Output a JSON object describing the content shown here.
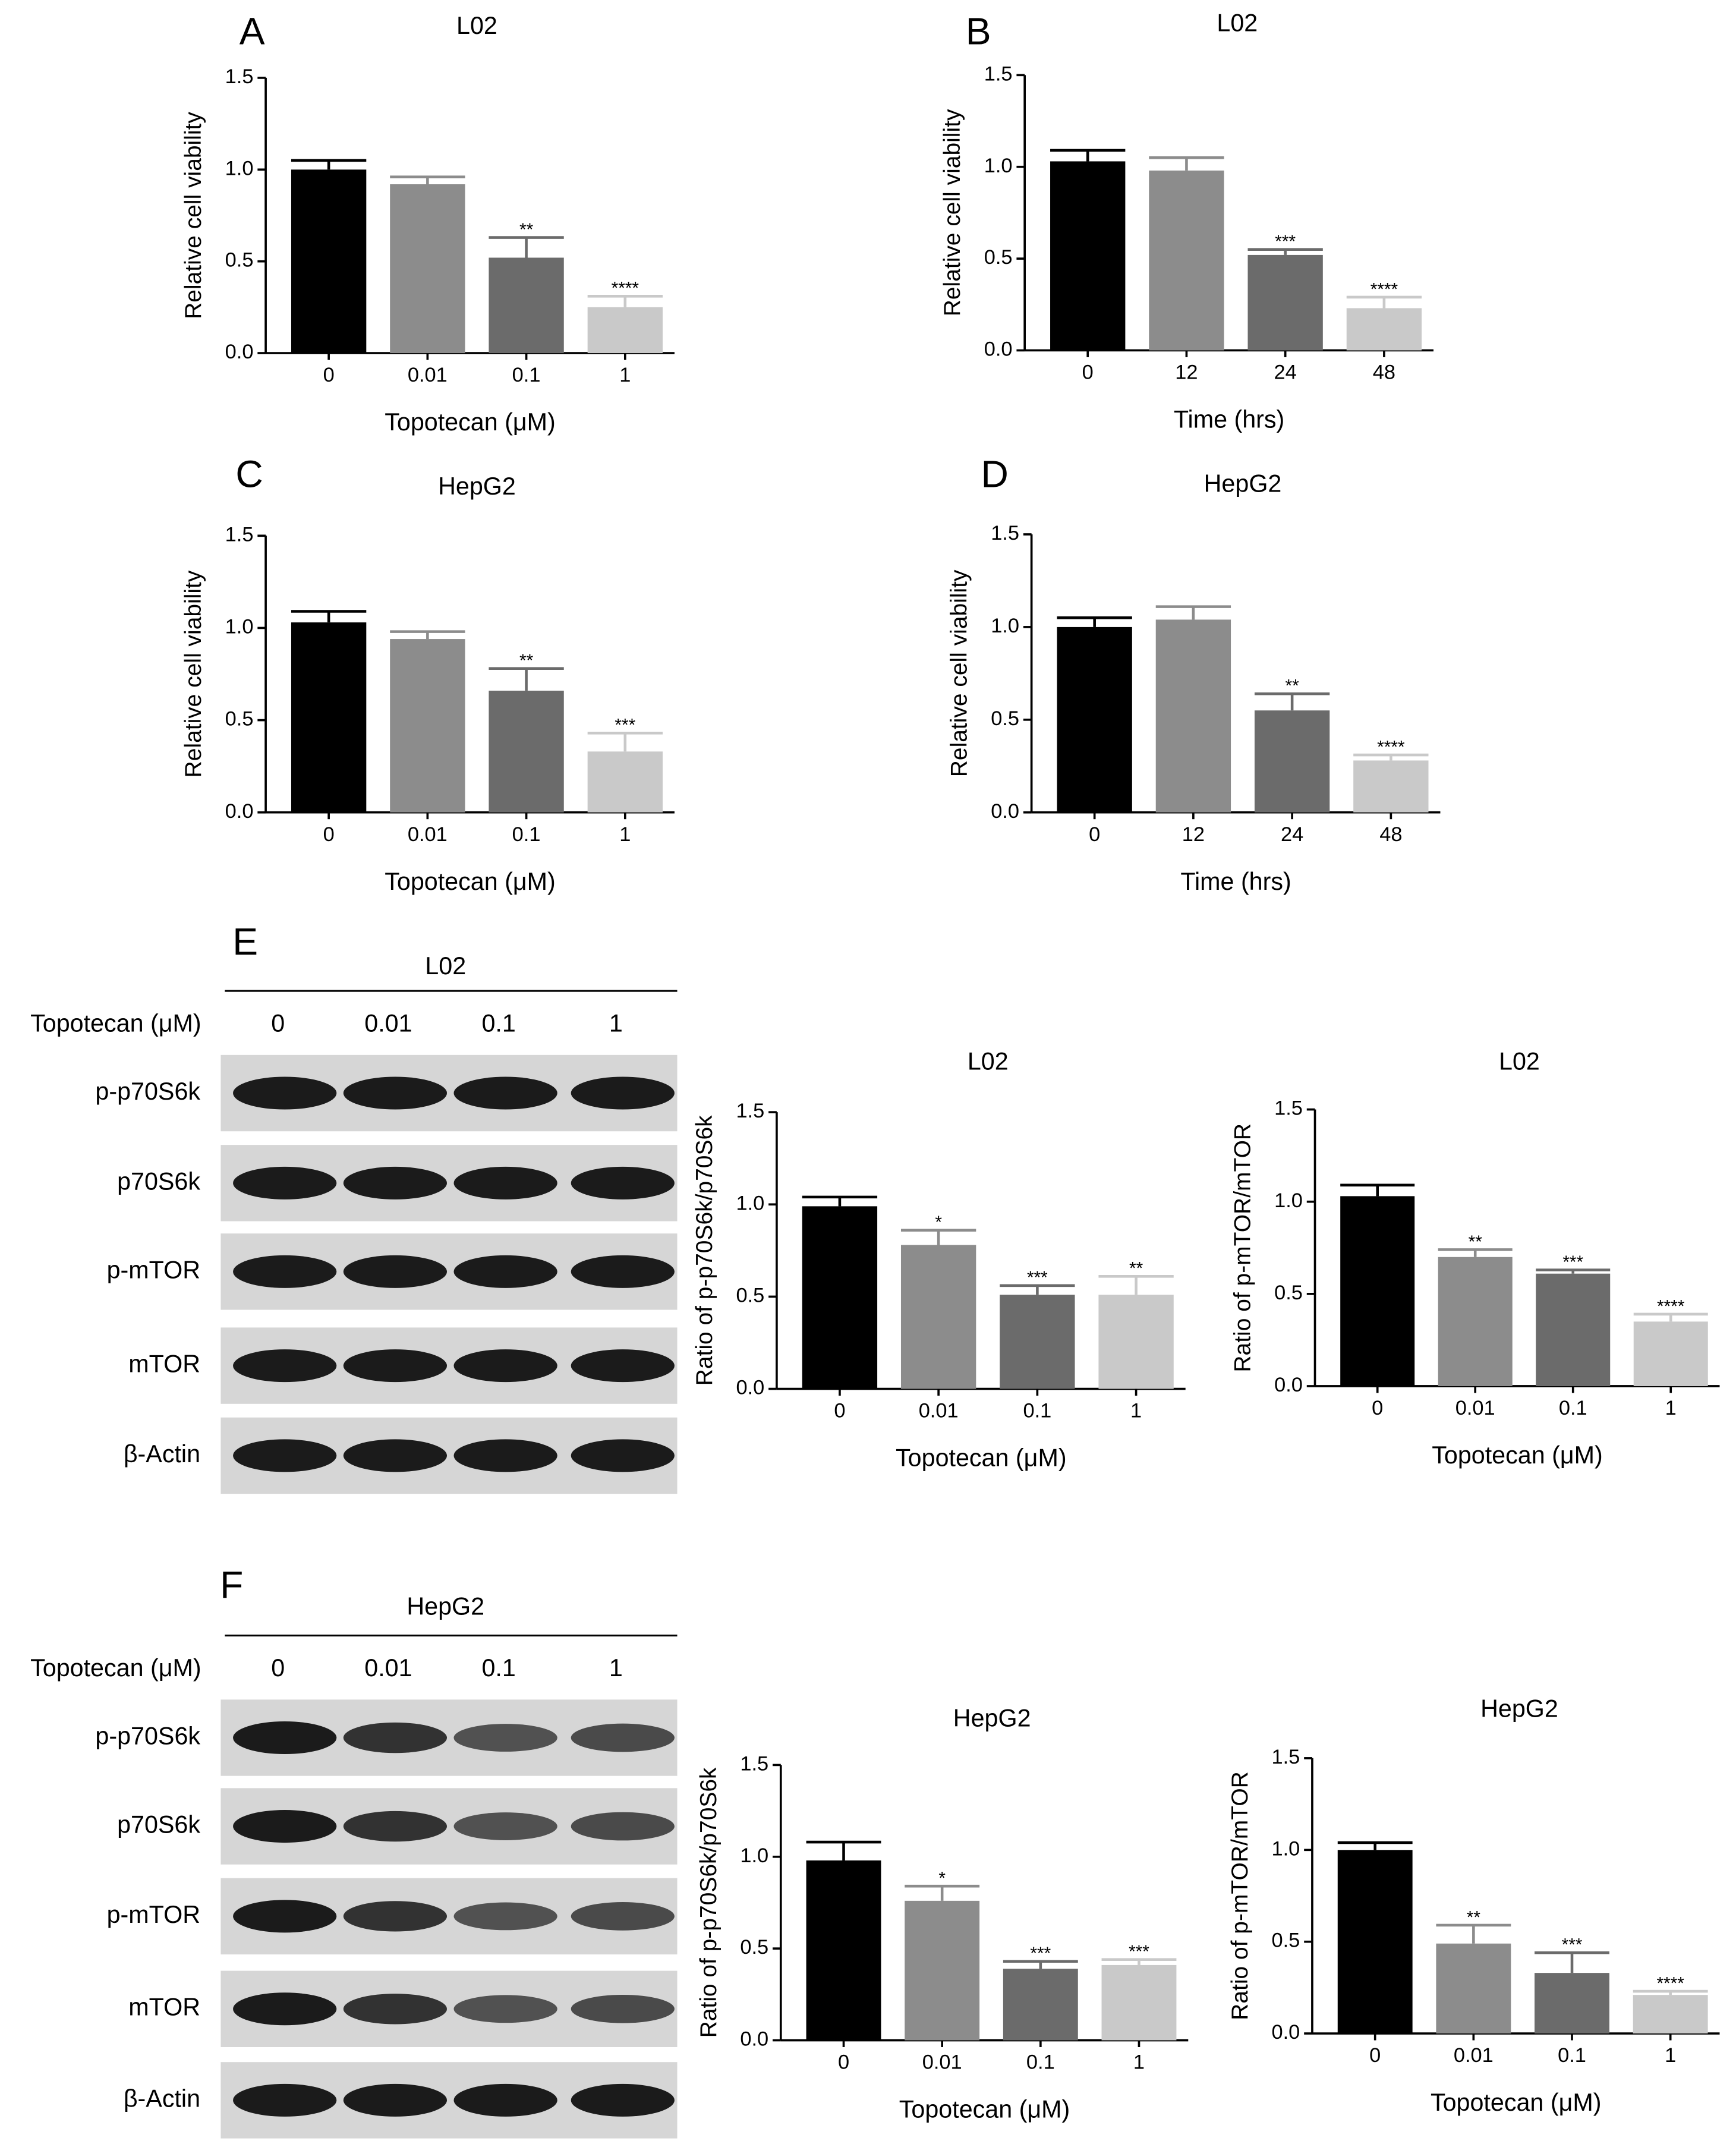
{
  "chart_data": [
    {
      "type": "bar",
      "panel": "A",
      "title": "L02",
      "x_label": "Topotecan (μM)",
      "y_label": "Relative cell viability",
      "categories": [
        "0",
        "0.01",
        "0.1",
        "1"
      ],
      "values": [
        1.0,
        0.92,
        0.52,
        0.25
      ],
      "errors": [
        0.05,
        0.04,
        0.11,
        0.06
      ],
      "annotations": [
        null,
        null,
        "**",
        "****"
      ],
      "colors": [
        "#000000",
        "#8c8c8c",
        "#6b6b6b",
        "#c9c9c9"
      ],
      "ylim": [
        0,
        1.5
      ],
      "yticks": [
        {
          "value": 0,
          "label": "0.0"
        },
        {
          "value": 0.5,
          "label": "0.5"
        },
        {
          "value": 1,
          "label": "1.0"
        },
        {
          "value": 1.5,
          "label": "1.5"
        }
      ]
    },
    {
      "type": "bar",
      "panel": "B",
      "title": "L02",
      "x_label": "Time (hrs)",
      "y_label": "Relative cell viability",
      "categories": [
        "0",
        "12",
        "24",
        "48"
      ],
      "values": [
        1.03,
        0.98,
        0.52,
        0.23
      ],
      "errors": [
        0.06,
        0.07,
        0.03,
        0.06
      ],
      "annotations": [
        null,
        null,
        "***",
        "****"
      ],
      "colors": [
        "#000000",
        "#8c8c8c",
        "#6b6b6b",
        "#c9c9c9"
      ],
      "ylim": [
        0,
        1.5
      ],
      "yticks": [
        {
          "value": 0,
          "label": "0.0"
        },
        {
          "value": 0.5,
          "label": "0.5"
        },
        {
          "value": 1,
          "label": "1.0"
        },
        {
          "value": 1.5,
          "label": "1.5"
        }
      ]
    },
    {
      "type": "bar",
      "panel": "C",
      "title": "HepG2",
      "x_label": "Topotecan (μM)",
      "y_label": "Relative cell viability",
      "categories": [
        "0",
        "0.01",
        "0.1",
        "1"
      ],
      "values": [
        1.03,
        0.94,
        0.66,
        0.33
      ],
      "errors": [
        0.06,
        0.04,
        0.12,
        0.1
      ],
      "annotations": [
        null,
        null,
        "**",
        "***"
      ],
      "colors": [
        "#000000",
        "#8c8c8c",
        "#6b6b6b",
        "#c9c9c9"
      ],
      "ylim": [
        0,
        1.5
      ],
      "yticks": [
        {
          "value": 0,
          "label": "0.0"
        },
        {
          "value": 0.5,
          "label": "0.5"
        },
        {
          "value": 1,
          "label": "1.0"
        },
        {
          "value": 1.5,
          "label": "1.5"
        }
      ]
    },
    {
      "type": "bar",
      "panel": "D",
      "title": "HepG2",
      "x_label": "Time (hrs)",
      "y_label": "Relative cell viability",
      "categories": [
        "0",
        "12",
        "24",
        "48"
      ],
      "values": [
        1.0,
        1.04,
        0.55,
        0.28
      ],
      "errors": [
        0.05,
        0.07,
        0.09,
        0.03
      ],
      "annotations": [
        null,
        null,
        "**",
        "****"
      ],
      "colors": [
        "#000000",
        "#8c8c8c",
        "#6b6b6b",
        "#c9c9c9"
      ],
      "ylim": [
        0,
        1.5
      ],
      "yticks": [
        {
          "value": 0,
          "label": "0.0"
        },
        {
          "value": 0.5,
          "label": "0.5"
        },
        {
          "value": 1,
          "label": "1.0"
        },
        {
          "value": 1.5,
          "label": "1.5"
        }
      ]
    },
    {
      "type": "bar",
      "title": "L02",
      "x_label": "Topotecan (μM)",
      "y_label": "Ratio of p-p70S6k/p70S6k",
      "categories": [
        "0",
        "0.01",
        "0.1",
        "1"
      ],
      "values": [
        0.99,
        0.78,
        0.51,
        0.51
      ],
      "errors": [
        0.05,
        0.08,
        0.05,
        0.1
      ],
      "annotations": [
        null,
        "*",
        "***",
        "**"
      ],
      "colors": [
        "#000000",
        "#8c8c8c",
        "#6b6b6b",
        "#c9c9c9"
      ],
      "ylim": [
        0,
        1.5
      ],
      "yticks": [
        {
          "value": 0,
          "label": "0.0"
        },
        {
          "value": 0.5,
          "label": "0.5"
        },
        {
          "value": 1,
          "label": "1.0"
        },
        {
          "value": 1.5,
          "label": "1.5"
        }
      ]
    },
    {
      "type": "bar",
      "title": "L02",
      "x_label": "Topotecan (μM)",
      "y_label": "Ratio of p-mTOR/mTOR",
      "categories": [
        "0",
        "0.01",
        "0.1",
        "1"
      ],
      "values": [
        1.03,
        0.7,
        0.61,
        0.35
      ],
      "errors": [
        0.06,
        0.04,
        0.02,
        0.04
      ],
      "annotations": [
        null,
        "**",
        "***",
        "****"
      ],
      "colors": [
        "#000000",
        "#8c8c8c",
        "#6b6b6b",
        "#c9c9c9"
      ],
      "ylim": [
        0,
        1.5
      ],
      "yticks": [
        {
          "value": 0,
          "label": "0.0"
        },
        {
          "value": 0.5,
          "label": "0.5"
        },
        {
          "value": 1,
          "label": "1.0"
        },
        {
          "value": 1.5,
          "label": "1.5"
        }
      ]
    },
    {
      "type": "bar",
      "title": "HepG2",
      "x_label": "Topotecan (μM)",
      "y_label": "Ratio of p-p70S6k/p70S6k",
      "categories": [
        "0",
        "0.01",
        "0.1",
        "1"
      ],
      "values": [
        0.98,
        0.76,
        0.39,
        0.41
      ],
      "errors": [
        0.1,
        0.08,
        0.04,
        0.03
      ],
      "annotations": [
        null,
        "*",
        "***",
        "***"
      ],
      "colors": [
        "#000000",
        "#8c8c8c",
        "#6b6b6b",
        "#c9c9c9"
      ],
      "ylim": [
        0,
        1.5
      ],
      "yticks": [
        {
          "value": 0,
          "label": "0.0"
        },
        {
          "value": 0.5,
          "label": "0.5"
        },
        {
          "value": 1,
          "label": "1.0"
        },
        {
          "value": 1.5,
          "label": "1.5"
        }
      ]
    },
    {
      "type": "bar",
      "title": "HepG2",
      "x_label": "Topotecan (μM)",
      "y_label": "Ratio of p-mTOR/mTOR",
      "categories": [
        "0",
        "0.01",
        "0.1",
        "1"
      ],
      "values": [
        1.0,
        0.49,
        0.33,
        0.21
      ],
      "errors": [
        0.04,
        0.1,
        0.11,
        0.02
      ],
      "annotations": [
        null,
        "**",
        "***",
        "****"
      ],
      "colors": [
        "#000000",
        "#8c8c8c",
        "#6b6b6b",
        "#c9c9c9"
      ],
      "ylim": [
        0,
        1.5
      ],
      "yticks": [
        {
          "value": 0,
          "label": "0.0"
        },
        {
          "value": 0.5,
          "label": "0.5"
        },
        {
          "value": 1,
          "label": "1.0"
        },
        {
          "value": 1.5,
          "label": "1.5"
        }
      ]
    }
  ],
  "blots": [
    {
      "panel": "E",
      "cell_line": "L02",
      "treatment": "Topotecan (μM)",
      "lanes": [
        "0",
        "0.01",
        "0.1",
        "1"
      ],
      "proteins": [
        "p-p70S6k",
        "p70S6k",
        "p-mTOR",
        "mTOR",
        "β-Actin"
      ]
    },
    {
      "panel": "F",
      "cell_line": "HepG2",
      "treatment": "Topotecan (μM)",
      "lanes": [
        "0",
        "0.01",
        "0.1",
        "1"
      ],
      "proteins": [
        "p-p70S6k",
        "p70S6k",
        "p-mTOR",
        "mTOR",
        "β-Actin"
      ]
    }
  ]
}
